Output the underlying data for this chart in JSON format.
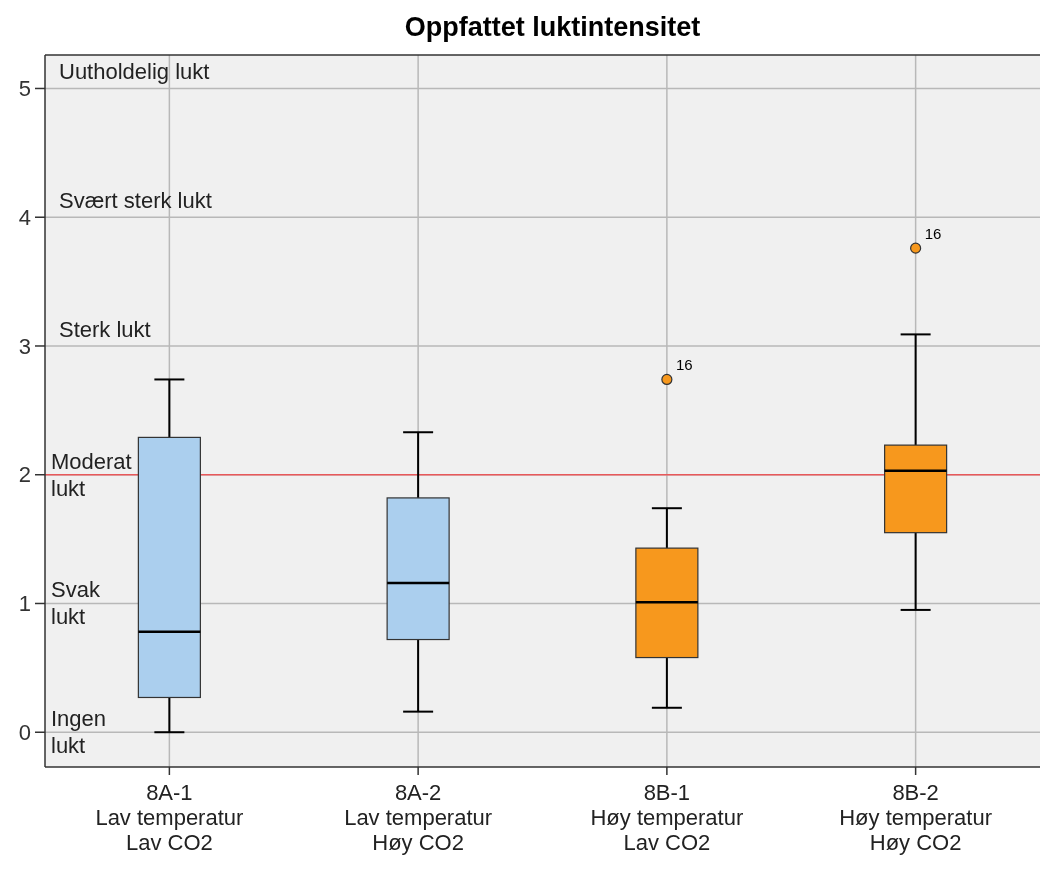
{
  "chart_data": {
    "type": "box",
    "title": "Oppfattet luktintensitet",
    "categories": [
      "8A-1\nLav temperatur\nLav CO2",
      "8A-2\nLav temperatur\nHøy CO2",
      "8B-1\nHøy temperatur\nLav CO2",
      "8B-2\nHøy temperatur\nHøy CO2"
    ],
    "boxes": [
      {
        "low": 0,
        "q1": 0.27,
        "median": 0.78,
        "q3": 2.29,
        "high": 2.74
      },
      {
        "low": 0.16,
        "q1": 0.72,
        "median": 1.16,
        "q3": 1.82,
        "high": 2.33
      },
      {
        "low": 0.19,
        "q1": 0.58,
        "median": 1.01,
        "q3": 1.43,
        "high": 1.74,
        "outliers": [
          2.74
        ]
      },
      {
        "low": 0.95,
        "q1": 1.55,
        "median": 2.03,
        "q3": 2.23,
        "high": 3.09,
        "outliers": [
          3.76
        ]
      }
    ],
    "colors": [
      "#abcfee",
      "#abcfee",
      "#f7981d",
      "#f7981d"
    ],
    "ylim": [
      -0.27,
      5.26
    ],
    "yticks": [
      0,
      1,
      2,
      3,
      4,
      5
    ],
    "grid": true,
    "ref_lines": [
      {
        "axis": "y",
        "value": 2,
        "color": "#e8585a"
      }
    ],
    "annotations": [
      "Uutholdelig lukt",
      "Svært sterk lukt",
      "Sterk lukt",
      "Moderat\nlukt",
      "Svak\nlukt",
      "Ingen\nlukt",
      "16",
      "16"
    ]
  }
}
